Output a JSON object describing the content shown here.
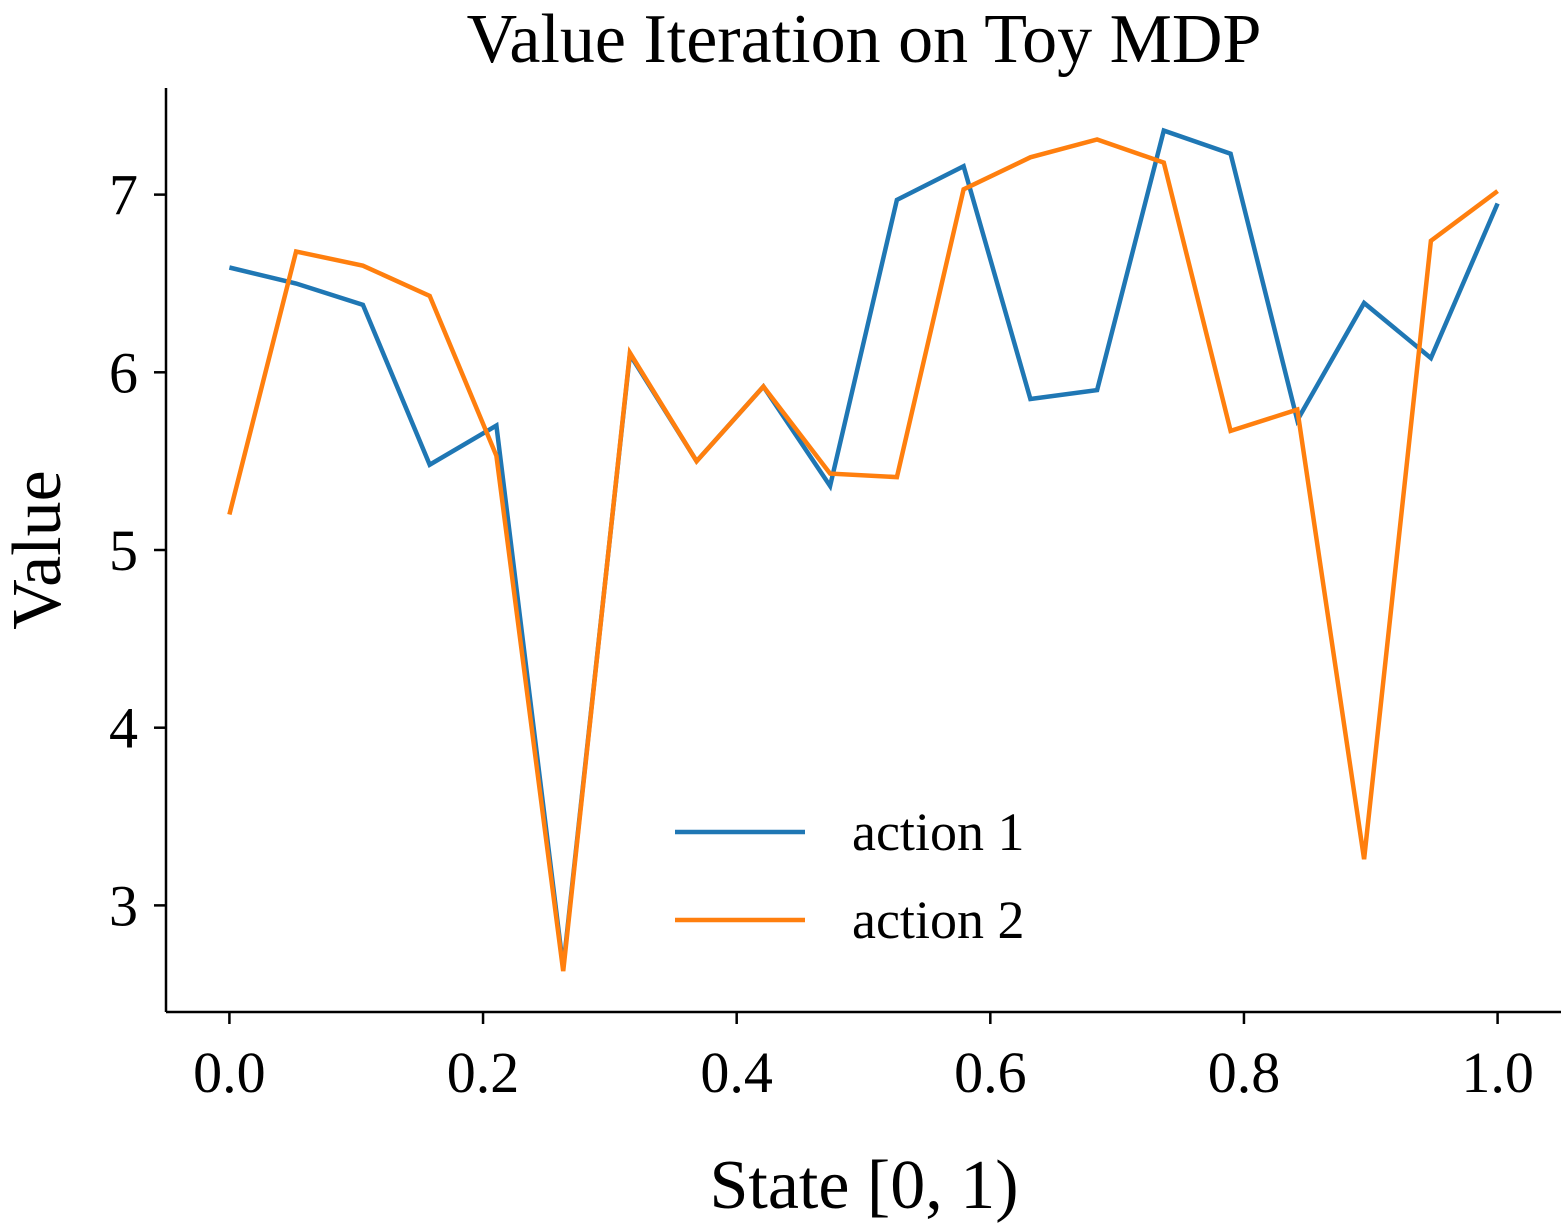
{
  "chart_data": {
    "type": "line",
    "title": "Value Iteration on Toy MDP",
    "xlabel": "State [0, 1)",
    "ylabel": "Value",
    "xlim": [
      -0.05,
      1.05
    ],
    "ylim": [
      2.4,
      7.6
    ],
    "xticks": [
      0.0,
      0.2,
      0.4,
      0.6,
      0.8,
      1.0
    ],
    "xtick_labels": [
      "0.0",
      "0.2",
      "0.4",
      "0.6",
      "0.8",
      "1.0"
    ],
    "yticks": [
      3,
      4,
      5,
      6,
      7
    ],
    "ytick_labels": [
      "3",
      "4",
      "5",
      "6",
      "7"
    ],
    "grid": false,
    "legend_position": "lower-center",
    "x": [
      0.0,
      0.0526,
      0.1053,
      0.1579,
      0.2105,
      0.2632,
      0.3158,
      0.3684,
      0.4211,
      0.4737,
      0.5263,
      0.5789,
      0.6316,
      0.6842,
      0.7368,
      0.7895,
      0.8421,
      0.8947,
      0.9474,
      1.0
    ],
    "series": [
      {
        "name": "action 1",
        "color": "#1f77b4",
        "values": [
          6.59,
          6.5,
          6.38,
          5.48,
          5.7,
          2.65,
          6.1,
          5.5,
          5.92,
          5.36,
          6.97,
          7.16,
          5.85,
          5.9,
          7.36,
          7.23,
          5.73,
          6.39,
          6.08,
          6.95
        ]
      },
      {
        "name": "action 2",
        "color": "#ff7f0e",
        "values": [
          5.2,
          6.68,
          6.6,
          6.43,
          5.53,
          2.63,
          6.11,
          5.5,
          5.92,
          5.43,
          5.41,
          7.03,
          7.21,
          7.31,
          7.18,
          5.67,
          5.79,
          3.26,
          6.74,
          7.02
        ]
      }
    ]
  }
}
